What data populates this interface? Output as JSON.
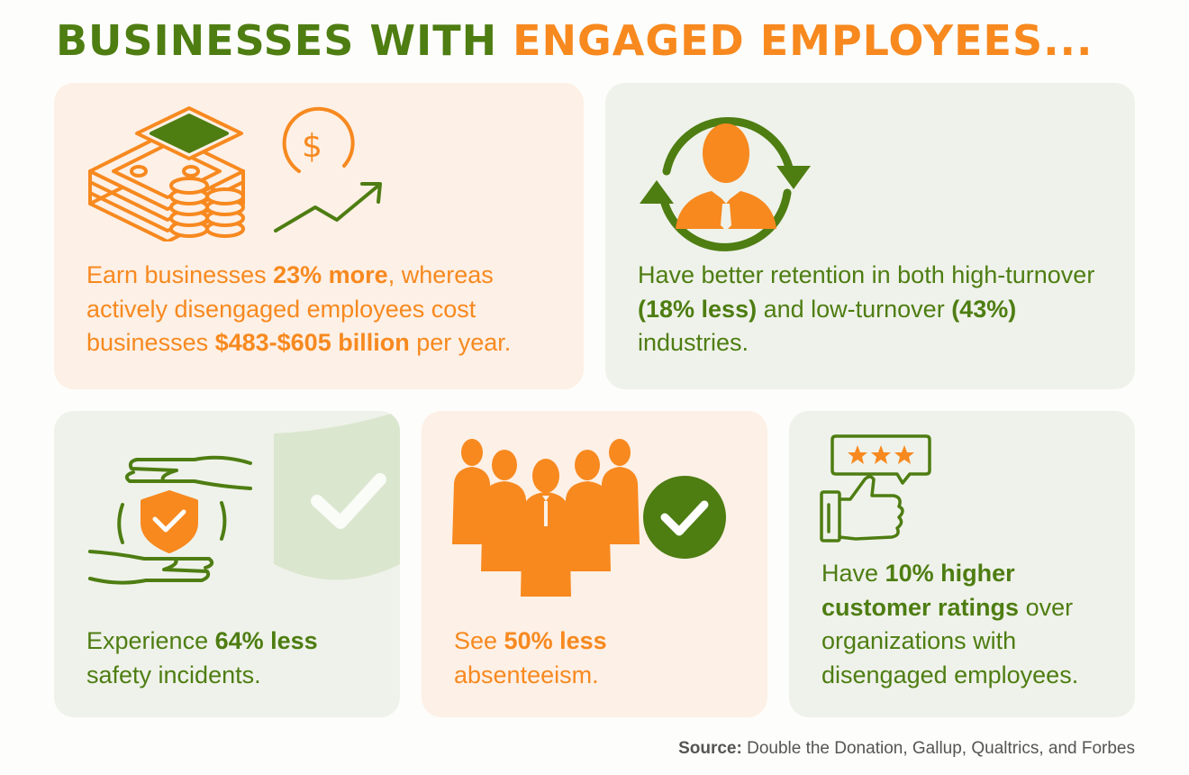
{
  "title": {
    "part1": "BUSINESSES WITH",
    "part2": "ENGAGED EMPLOYEES..."
  },
  "cards": [
    {
      "icon": "money-growth-icon",
      "t1": "Earn businesses ",
      "b1": "23% more",
      "t2": ", whereas actively disengaged employees cost businesses ",
      "b2": "$483-$605 billion",
      "t3": " per year."
    },
    {
      "icon": "employee-retention-icon",
      "t1": "Have better retention in both high-turnover ",
      "b1": "(18% less)",
      "t2": " and low-turnover ",
      "b2": "(43%)",
      "t3": " industries."
    },
    {
      "icon": "safety-hands-shield-icon",
      "t1": "Experience ",
      "b1": "64% less",
      "t2": " safety incidents."
    },
    {
      "icon": "team-check-icon",
      "t1": "See ",
      "b1": "50% less",
      "t2": " absenteeism."
    },
    {
      "icon": "rating-thumbs-up-icon",
      "t1": "Have ",
      "b1": "10% higher customer ratings",
      "t2": " over organizations with disengaged employees."
    }
  ],
  "source": {
    "label": "Source:",
    "text": " Double the Donation, Gallup, Qualtrics, and Forbes"
  },
  "colors": {
    "green": "#4e7d12",
    "orange": "#f7891f",
    "peach": "#fdf0e6",
    "sage": "#eff2ea"
  }
}
